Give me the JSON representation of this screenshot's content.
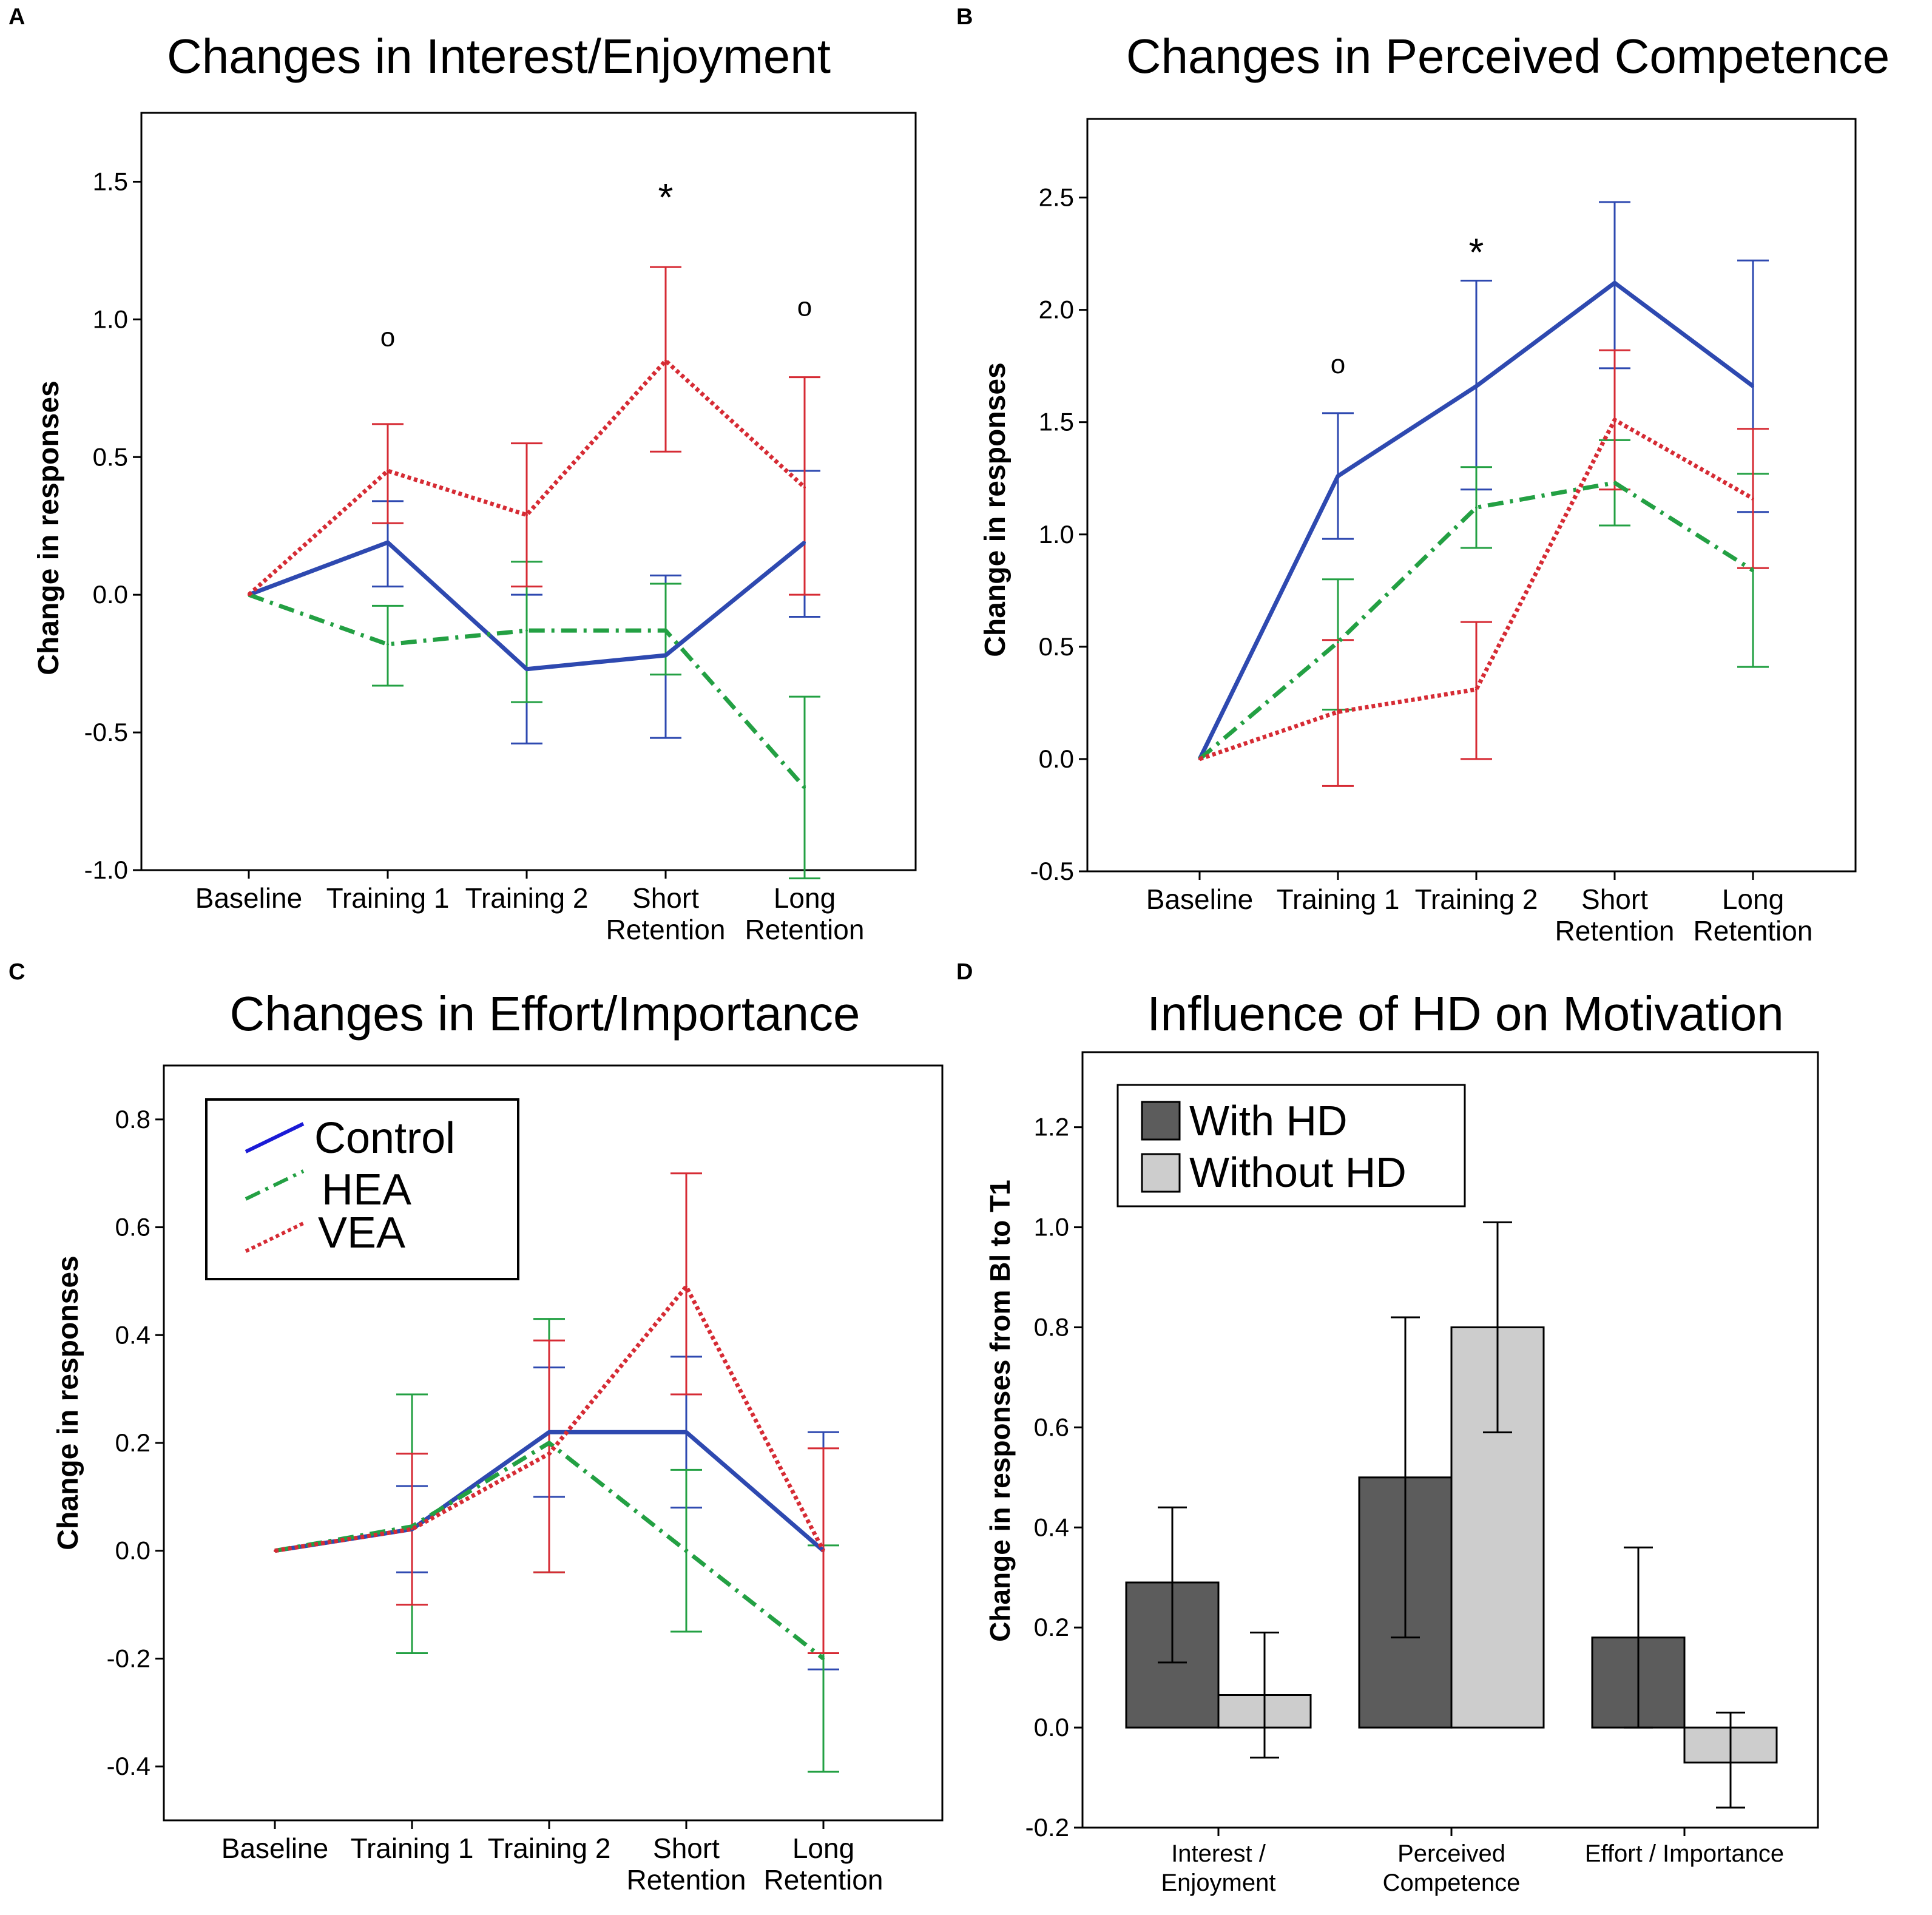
{
  "figure": {
    "background": "#ffffff"
  },
  "chart_data": [
    {
      "panel": "A",
      "type": "line",
      "title": "Changes in Interest/Enjoyment",
      "xlabel": "",
      "ylabel": "Change in responses",
      "categories": [
        "Baseline",
        "Training 1",
        "Training 2",
        "Short Retention",
        "Long Retention"
      ],
      "category_lines": [
        [
          "Baseline"
        ],
        [
          "Training 1"
        ],
        [
          "Training 2"
        ],
        [
          "Short",
          "Retention"
        ],
        [
          "Long",
          "Retention"
        ]
      ],
      "ylim": [
        -1.0,
        1.75
      ],
      "yticks": [
        -1.0,
        -0.5,
        0.0,
        0.5,
        1.0,
        1.5
      ],
      "ytick_labels": [
        "-1.0",
        "-0.5",
        "0.0",
        "0.5",
        "1.0",
        "1.5"
      ],
      "grid": false,
      "series": [
        {
          "name": "Control",
          "color": "#2e49b0",
          "style": "solid",
          "values": [
            0.0,
            0.19,
            -0.27,
            -0.22,
            0.19
          ],
          "err_low": [
            0.0,
            0.03,
            -0.54,
            -0.52,
            -0.08
          ],
          "err_high": [
            0.0,
            0.34,
            0.0,
            0.07,
            0.45
          ]
        },
        {
          "name": "HEA",
          "color": "#23a043",
          "style": "dashdot",
          "values": [
            0.0,
            -0.18,
            -0.13,
            -0.13,
            -0.7
          ],
          "err_low": [
            0.0,
            -0.33,
            -0.39,
            -0.29,
            -1.03
          ],
          "err_high": [
            0.0,
            -0.04,
            0.12,
            0.04,
            -0.37
          ]
        },
        {
          "name": "VEA",
          "color": "#d62b34",
          "style": "dotted",
          "values": [
            0.0,
            0.45,
            0.29,
            0.85,
            0.39
          ],
          "err_low": [
            0.0,
            0.26,
            0.03,
            0.52,
            0.0
          ],
          "err_high": [
            0.0,
            0.62,
            0.55,
            1.19,
            0.79
          ]
        }
      ],
      "annotations": [
        {
          "text": "o",
          "category": 1,
          "y": 0.92
        },
        {
          "text": "*",
          "category": 3,
          "y": 1.47
        },
        {
          "text": "o",
          "category": 4,
          "y": 1.03
        }
      ]
    },
    {
      "panel": "B",
      "type": "line",
      "title": "Changes in Perceived Competence",
      "xlabel": "",
      "ylabel": "Change in responses",
      "categories": [
        "Baseline",
        "Training 1",
        "Training 2",
        "Short Retention",
        "Long Retention"
      ],
      "category_lines": [
        [
          "Baseline"
        ],
        [
          "Training 1"
        ],
        [
          "Training 2"
        ],
        [
          "Short",
          "Retention"
        ],
        [
          "Long",
          "Retention"
        ]
      ],
      "ylim": [
        -0.5,
        2.85
      ],
      "yticks": [
        -0.5,
        0.0,
        0.5,
        1.0,
        1.5,
        2.0,
        2.5
      ],
      "ytick_labels": [
        "-0.5",
        "0.0",
        "0.5",
        "1.0",
        "1.5",
        "2.0",
        "2.5"
      ],
      "grid": false,
      "series": [
        {
          "name": "Control",
          "color": "#2e49b0",
          "style": "solid",
          "values": [
            0.0,
            1.26,
            1.66,
            2.12,
            1.66
          ],
          "err_low": [
            0.0,
            0.98,
            1.2,
            1.74,
            1.1
          ],
          "err_high": [
            0.0,
            1.54,
            2.13,
            2.48,
            2.22
          ]
        },
        {
          "name": "HEA",
          "color": "#23a043",
          "style": "dashdot",
          "values": [
            0.0,
            0.52,
            1.12,
            1.23,
            0.84
          ],
          "err_low": [
            0.0,
            0.22,
            0.94,
            1.04,
            0.41
          ],
          "err_high": [
            0.0,
            0.8,
            1.3,
            1.42,
            1.27
          ]
        },
        {
          "name": "VEA",
          "color": "#d62b34",
          "style": "dotted",
          "values": [
            0.0,
            0.21,
            0.31,
            1.51,
            1.16
          ],
          "err_low": [
            0.0,
            -0.12,
            0.0,
            1.2,
            0.85
          ],
          "err_high": [
            0.0,
            0.53,
            0.61,
            1.82,
            1.47
          ]
        }
      ],
      "annotations": [
        {
          "text": "o",
          "category": 1,
          "y": 1.74
        },
        {
          "text": "*",
          "category": 2,
          "y": 2.29
        }
      ]
    },
    {
      "panel": "C",
      "type": "line",
      "title": "Changes in Effort/Importance",
      "xlabel": "",
      "ylabel": "Change in responses",
      "categories": [
        "Baseline",
        "Training 1",
        "Training 2",
        "Short Retention",
        "Long Retention"
      ],
      "category_lines": [
        [
          "Baseline"
        ],
        [
          "Training 1"
        ],
        [
          "Training 2"
        ],
        [
          "Short",
          "Retention"
        ],
        [
          "Long",
          "Retention"
        ]
      ],
      "ylim": [
        -0.5,
        0.9
      ],
      "yticks": [
        -0.4,
        -0.2,
        0.0,
        0.2,
        0.4,
        0.6,
        0.8
      ],
      "ytick_labels": [
        "-0.4",
        "-0.2",
        "0.0",
        "0.2",
        "0.4",
        "0.6",
        "0.8"
      ],
      "grid": false,
      "legend": {
        "position": "top-left",
        "entries": [
          "Control",
          "HEA",
          "VEA"
        ]
      },
      "series": [
        {
          "name": "Control",
          "color": "#2e49b0",
          "style": "solid",
          "values": [
            0.0,
            0.04,
            0.22,
            0.22,
            0.0
          ],
          "err_low": [
            0.0,
            -0.04,
            0.1,
            0.08,
            -0.22
          ],
          "err_high": [
            0.0,
            0.12,
            0.34,
            0.36,
            0.22
          ]
        },
        {
          "name": "HEA",
          "color": "#23a043",
          "style": "dashdot",
          "values": [
            0.0,
            0.045,
            0.2,
            0.0,
            -0.2
          ],
          "err_low": [
            0.0,
            -0.19,
            -0.04,
            -0.15,
            -0.41
          ],
          "err_high": [
            0.0,
            0.29,
            0.43,
            0.15,
            0.01
          ]
        },
        {
          "name": "VEA",
          "color": "#d62b34",
          "style": "dotted",
          "values": [
            0.0,
            0.04,
            0.18,
            0.49,
            0.0
          ],
          "err_low": [
            0.0,
            -0.1,
            -0.04,
            0.29,
            -0.19
          ],
          "err_high": [
            0.0,
            0.18,
            0.39,
            0.7,
            0.19
          ]
        }
      ]
    },
    {
      "panel": "D",
      "type": "bar",
      "title": "Influence of HD on Motivation",
      "xlabel": "",
      "ylabel": "Change in responses from Bl to T1",
      "categories": [
        "Interest / Enjoyment",
        "Perceived Competence",
        "Effort / Importance"
      ],
      "category_lines": [
        [
          "Interest /",
          "Enjoyment"
        ],
        [
          "Perceived",
          "Competence"
        ],
        [
          "Effort / Importance"
        ]
      ],
      "ylim": [
        -0.2,
        1.35
      ],
      "yticks": [
        -0.2,
        0.0,
        0.2,
        0.4,
        0.6,
        0.8,
        1.0,
        1.2
      ],
      "ytick_labels": [
        "-0.2",
        "0.0",
        "0.2",
        "0.4",
        "0.6",
        "0.8",
        "1.0",
        "1.2"
      ],
      "grid": false,
      "legend": {
        "position": "top-left",
        "entries": [
          "With HD",
          "Without HD"
        ]
      },
      "series": [
        {
          "name": "With HD",
          "color": "#5c5c5c",
          "values": [
            0.29,
            0.5,
            0.18
          ],
          "err_low": [
            0.13,
            0.18,
            0.0
          ],
          "err_high": [
            0.44,
            0.82,
            0.36
          ]
        },
        {
          "name": "Without HD",
          "color": "#cdcdcd",
          "values": [
            0.065,
            0.8,
            -0.07
          ],
          "err_low": [
            -0.06,
            0.59,
            -0.16
          ],
          "err_high": [
            0.19,
            1.01,
            0.03
          ]
        }
      ]
    }
  ]
}
